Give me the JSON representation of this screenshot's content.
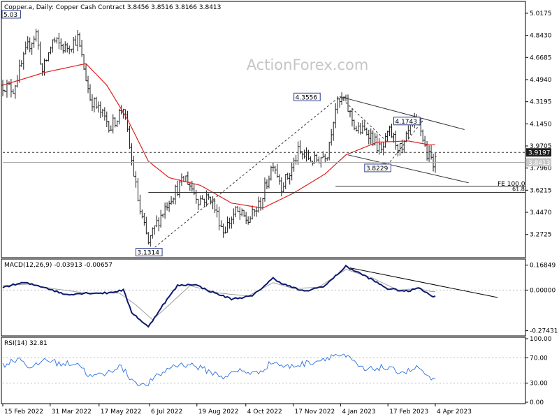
{
  "header": {
    "symbol": "Copper.a",
    "timeframe": "Daily",
    "instrument": "Copper Cash Contract",
    "open": "3.8456",
    "high": "3.8516",
    "low": "3.8166",
    "close": "3.8413"
  },
  "watermark": "ActionForex.com",
  "colors": {
    "price": "#1e1e1e",
    "sma": "#e02020",
    "macd": "#0d1a6e",
    "signal": "#a0a0a0",
    "rsi": "#2a6fe0",
    "background": "#ffffff"
  },
  "chart_data": [
    {
      "type": "candlestick",
      "panel": "price",
      "ylim": [
        3.1,
        5.1
      ],
      "y_ticks": [
        "5.0175",
        "4.8430",
        "4.6685",
        "4.4940",
        "4.3195",
        "4.1450",
        "3.9705",
        "3.7960",
        "3.6215",
        "3.4470",
        "3.2725"
      ],
      "x_ticks": [
        "15 Feb 2022",
        "31 Mar 2022",
        "17 May 2022",
        "6 Jul 2022",
        "19 Aug 2022",
        "4 Oct 2022",
        "17 Nov 2022",
        "4 Jan 2023",
        "17 Feb 2023",
        "4 Apr 2023"
      ],
      "series": [
        {
          "name": "",
          "style": "ohlc",
          "anchors": [
            [
              0,
              4.45
            ],
            [
              5,
              4.42
            ],
            [
              12,
              4.75
            ],
            [
              16,
              4.86
            ],
            [
              19,
              4.55
            ],
            [
              24,
              4.8
            ],
            [
              30,
              4.74
            ],
            [
              36,
              4.82
            ],
            [
              42,
              4.35
            ],
            [
              52,
              4.12
            ],
            [
              58,
              4.28
            ],
            [
              62,
              3.85
            ],
            [
              66,
              3.45
            ],
            [
              70,
              3.2
            ],
            [
              74,
              3.36
            ],
            [
              80,
              3.55
            ],
            [
              88,
              3.72
            ],
            [
              94,
              3.55
            ],
            [
              100,
              3.56
            ],
            [
              106,
              3.3
            ],
            [
              112,
              3.45
            ],
            [
              118,
              3.38
            ],
            [
              124,
              3.52
            ],
            [
              130,
              3.85
            ],
            [
              134,
              3.66
            ],
            [
              138,
              3.75
            ],
            [
              142,
              3.92
            ],
            [
              150,
              3.85
            ],
            [
              156,
              3.92
            ],
            [
              160,
              4.28
            ],
            [
              164,
              4.34
            ],
            [
              170,
              4.1
            ],
            [
              176,
              4.08
            ],
            [
              182,
              3.92
            ],
            [
              186,
              4.08
            ],
            [
              192,
              3.92
            ],
            [
              196,
              4.12
            ],
            [
              200,
              4.16
            ],
            [
              204,
              3.9
            ],
            [
              208,
              3.84
            ]
          ]
        },
        {
          "name": "",
          "style": "sma",
          "anchors": [
            [
              0,
              4.45
            ],
            [
              20,
              4.55
            ],
            [
              40,
              4.62
            ],
            [
              50,
              4.45
            ],
            [
              60,
              4.18
            ],
            [
              70,
              3.85
            ],
            [
              80,
              3.72
            ],
            [
              95,
              3.66
            ],
            [
              110,
              3.52
            ],
            [
              125,
              3.48
            ],
            [
              140,
              3.6
            ],
            [
              155,
              3.75
            ],
            [
              165,
              3.9
            ],
            [
              180,
              4.0
            ],
            [
              195,
              4.01
            ],
            [
              205,
              3.98
            ]
          ]
        }
      ],
      "annotations": {
        "peak_label": "5.03",
        "low_label": "3.1314",
        "high_label": "4.3556",
        "mid_high_label": "4.1743",
        "mid_low_label": "3.8229",
        "last_price": "3.8413",
        "level_price": "3.9197",
        "fe_label": "FE 100.0",
        "fe_level": "61.8",
        "lines": [
          {
            "kind": "trend-dotted",
            "from": [
              70,
              3.13
            ],
            "to": [
              162,
              4.36
            ]
          },
          {
            "kind": "trend-dotted",
            "from": [
              162,
              4.36
            ],
            "to": [
              185,
              4.0
            ]
          },
          {
            "kind": "trend-dotted",
            "from": [
              185,
              3.82
            ],
            "to": [
              202,
              4.17
            ]
          },
          {
            "kind": "channel-upper",
            "from": [
              162,
              4.36
            ],
            "to": [
              222,
              4.1
            ]
          },
          {
            "kind": "channel-lower",
            "from": [
              166,
              3.9
            ],
            "to": [
              224,
              3.68
            ]
          },
          {
            "kind": "horizontal-dashed",
            "value": 3.9197
          },
          {
            "kind": "horizontal-solid",
            "value": 3.8413
          },
          {
            "kind": "fe-100",
            "value": 3.652,
            "from": 160
          },
          {
            "kind": "fe-618",
            "value": 3.604,
            "from": 70
          }
        ]
      }
    },
    {
      "type": "line",
      "panel": "macd",
      "title": "MACD(12,26,9) -0.03913 -0.00657",
      "ylim": [
        -0.3,
        0.2
      ],
      "y_ticks": [
        "0.16849",
        "0.00000",
        "-0.27431"
      ],
      "series": [
        {
          "name": "",
          "style": "macd",
          "anchors": [
            [
              0,
              0.02
            ],
            [
              10,
              0.05
            ],
            [
              20,
              0.02
            ],
            [
              30,
              -0.03
            ],
            [
              40,
              -0.02
            ],
            [
              50,
              -0.02
            ],
            [
              58,
              0.0
            ],
            [
              62,
              -0.15
            ],
            [
              70,
              -0.25
            ],
            [
              76,
              -0.12
            ],
            [
              84,
              0.03
            ],
            [
              92,
              0.04
            ],
            [
              100,
              -0.01
            ],
            [
              110,
              -0.06
            ],
            [
              120,
              -0.04
            ],
            [
              130,
              0.08
            ],
            [
              135,
              0.04
            ],
            [
              145,
              -0.01
            ],
            [
              155,
              0.03
            ],
            [
              165,
              0.16
            ],
            [
              175,
              0.09
            ],
            [
              185,
              0.01
            ],
            [
              195,
              -0.01
            ],
            [
              200,
              0.02
            ],
            [
              206,
              -0.04
            ]
          ]
        },
        {
          "name": "",
          "style": "signal",
          "anchors": [
            [
              0,
              0.03
            ],
            [
              12,
              0.04
            ],
            [
              24,
              0.01
            ],
            [
              40,
              -0.02
            ],
            [
              56,
              -0.02
            ],
            [
              64,
              -0.1
            ],
            [
              72,
              -0.2
            ],
            [
              80,
              -0.1
            ],
            [
              90,
              0.03
            ],
            [
              104,
              -0.02
            ],
            [
              118,
              -0.04
            ],
            [
              130,
              0.05
            ],
            [
              140,
              0.01
            ],
            [
              152,
              0.02
            ],
            [
              165,
              0.14
            ],
            [
              178,
              0.08
            ],
            [
              190,
              0.0
            ],
            [
              200,
              0.01
            ],
            [
              206,
              -0.01
            ]
          ]
        }
      ],
      "trendline": {
        "from": [
          167,
          0.15
        ],
        "to": [
          238,
          -0.05
        ]
      }
    },
    {
      "type": "line",
      "panel": "rsi",
      "title": "RSI(14) 32.81",
      "ylim": [
        0,
        100
      ],
      "y_ticks": [
        "100.00",
        "70.00",
        "30.00",
        "0.00"
      ],
      "levels": [
        70,
        30
      ],
      "series": [
        {
          "name": "",
          "style": "rsi",
          "anchors": [
            [
              0,
              58
            ],
            [
              8,
              70
            ],
            [
              14,
              52
            ],
            [
              20,
              68
            ],
            [
              28,
              60
            ],
            [
              36,
              62
            ],
            [
              42,
              40
            ],
            [
              50,
              45
            ],
            [
              56,
              58
            ],
            [
              62,
              36
            ],
            [
              68,
              25
            ],
            [
              74,
              40
            ],
            [
              82,
              58
            ],
            [
              90,
              60
            ],
            [
              98,
              50
            ],
            [
              106,
              40
            ],
            [
              114,
              50
            ],
            [
              122,
              45
            ],
            [
              130,
              64
            ],
            [
              136,
              55
            ],
            [
              144,
              60
            ],
            [
              152,
              66
            ],
            [
              160,
              75
            ],
            [
              166,
              70
            ],
            [
              174,
              50
            ],
            [
              182,
              55
            ],
            [
              188,
              50
            ],
            [
              194,
              48
            ],
            [
              200,
              55
            ],
            [
              206,
              33
            ]
          ]
        }
      ]
    }
  ]
}
